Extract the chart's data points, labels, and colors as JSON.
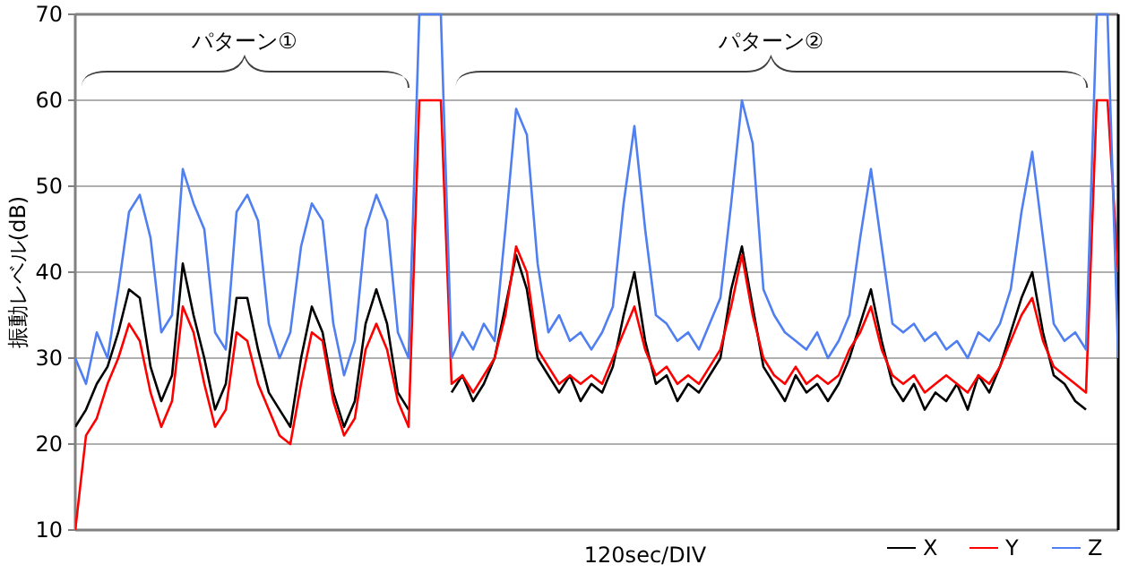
{
  "chart_data": {
    "type": "line",
    "xlabel": "120sec/DIV",
    "ylabel": "振動レベル(dB)",
    "annotations": [
      "パターン①",
      "パターン②"
    ],
    "categories": [
      null,
      null,
      null,
      null,
      null,
      null,
      null,
      null,
      null,
      null,
      null,
      null,
      null,
      null,
      null,
      null,
      null,
      null,
      null,
      null,
      null,
      null,
      null,
      null,
      null,
      null,
      null,
      null,
      null,
      null,
      null,
      null,
      null,
      null,
      null,
      null,
      null,
      null,
      null,
      null,
      null,
      null,
      null,
      null,
      null,
      null,
      null,
      null,
      null,
      null,
      null,
      null,
      null,
      null,
      null,
      null,
      null,
      null,
      null,
      null,
      null,
      null,
      null,
      null,
      null,
      null,
      null,
      null,
      null,
      null,
      null,
      null,
      null,
      null,
      null,
      null,
      null,
      null,
      null,
      null,
      null,
      null,
      null,
      null,
      null,
      null,
      null,
      null,
      null,
      null,
      null,
      null,
      null,
      null,
      null,
      null,
      null,
      null
    ],
    "series": [
      {
        "name": "X",
        "color": "#000000",
        "values": [
          22,
          24,
          27,
          29,
          33,
          38,
          37,
          29,
          25,
          28,
          41,
          35,
          30,
          24,
          27,
          37,
          37,
          31,
          26,
          24,
          22,
          30,
          36,
          33,
          26,
          22,
          25,
          34,
          38,
          34,
          26,
          24,
          null,
          null,
          null,
          26,
          28,
          25,
          27,
          30,
          36,
          42,
          38,
          30,
          28,
          26,
          28,
          25,
          27,
          26,
          29,
          35,
          40,
          32,
          27,
          28,
          25,
          27,
          26,
          28,
          30,
          38,
          43,
          36,
          29,
          27,
          25,
          28,
          26,
          27,
          25,
          27,
          30,
          34,
          38,
          32,
          27,
          25,
          27,
          24,
          26,
          25,
          27,
          24,
          28,
          26,
          29,
          33,
          37,
          40,
          33,
          28,
          27,
          25,
          24,
          null,
          null,
          null
        ]
      },
      {
        "name": "Y",
        "color": "#ff0000",
        "values": [
          10,
          21,
          23,
          27,
          30,
          34,
          32,
          26,
          22,
          25,
          36,
          33,
          27,
          22,
          24,
          33,
          32,
          27,
          24,
          21,
          20,
          27,
          33,
          32,
          25,
          21,
          23,
          31,
          34,
          31,
          25,
          22,
          60,
          60,
          60,
          27,
          28,
          26,
          28,
          30,
          35,
          43,
          40,
          31,
          29,
          27,
          28,
          27,
          28,
          27,
          30,
          33,
          36,
          31,
          28,
          29,
          27,
          28,
          27,
          29,
          31,
          36,
          42,
          35,
          30,
          28,
          27,
          29,
          27,
          28,
          27,
          28,
          31,
          33,
          36,
          31,
          28,
          27,
          28,
          26,
          27,
          28,
          27,
          26,
          28,
          27,
          29,
          32,
          35,
          37,
          32,
          29,
          28,
          27,
          26,
          60,
          60,
          40
        ]
      },
      {
        "name": "Z",
        "color": "#4f7ff0",
        "values": [
          30,
          27,
          33,
          30,
          38,
          47,
          49,
          44,
          33,
          35,
          52,
          48,
          45,
          33,
          31,
          47,
          49,
          46,
          34,
          30,
          33,
          43,
          48,
          46,
          34,
          28,
          32,
          45,
          49,
          46,
          33,
          30,
          70,
          70,
          70,
          30,
          33,
          31,
          34,
          32,
          45,
          59,
          56,
          41,
          33,
          35,
          32,
          33,
          31,
          33,
          36,
          48,
          57,
          45,
          35,
          34,
          32,
          33,
          31,
          34,
          37,
          48,
          60,
          55,
          38,
          35,
          33,
          32,
          31,
          33,
          30,
          32,
          35,
          44,
          52,
          43,
          34,
          33,
          34,
          32,
          33,
          31,
          32,
          30,
          33,
          32,
          34,
          38,
          47,
          54,
          44,
          34,
          32,
          33,
          31,
          70,
          70,
          30
        ]
      }
    ],
    "ylim": [
      10,
      70
    ],
    "yticks": [
      10,
      20,
      30,
      40,
      50,
      60,
      70
    ],
    "grid": "y",
    "legend": "bottom right",
    "tick_labels": "y"
  }
}
